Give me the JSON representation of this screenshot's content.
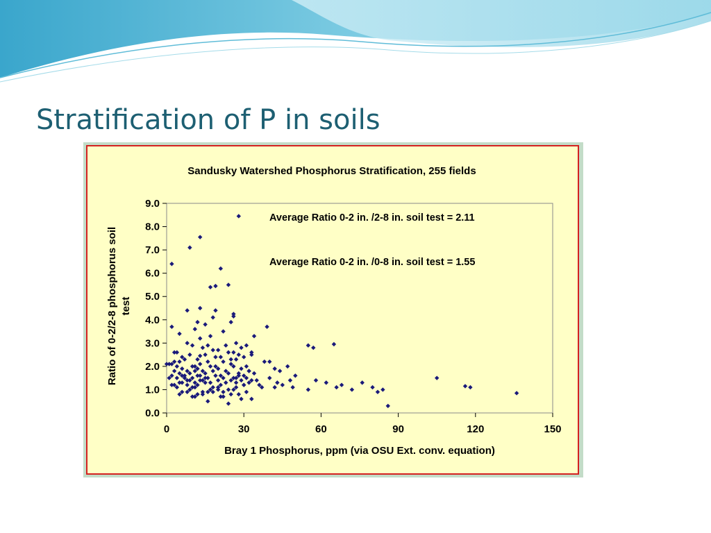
{
  "slide": {
    "title": "Stratification of P in soils"
  },
  "colors": {
    "title": "#1d5f72",
    "chart_background": "#ffffc6",
    "chart_border": "#d42020",
    "frame": "#c3dcc8",
    "marker": "#1a1a7a",
    "wave_light": "#9ad9ea",
    "wave_dark": "#3aa6cc"
  },
  "chart_data": {
    "type": "scatter",
    "title": "Sandusky Watershed Phosphorus Stratification, 255 fields",
    "xlabel": "Bray 1 Phosphorus, ppm (via OSU Ext. conv. equation)",
    "ylabel": "Ratio of 0-2/2-8 phosphorus soil test",
    "xlim": [
      0,
      150
    ],
    "ylim": [
      0,
      9
    ],
    "xticks": [
      "0",
      "30",
      "60",
      "90",
      "120",
      "150"
    ],
    "yticks": [
      "0.0",
      "1.0",
      "2.0",
      "3.0",
      "4.0",
      "5.0",
      "6.0",
      "7.0",
      "8.0",
      "9.0"
    ],
    "grid": false,
    "annotations": [
      "Average Ratio 0-2 in. /2-8 in. soil test = 2.11",
      "Average Ratio 0-2 in. /0-8 in. soil test = 1.55"
    ],
    "series": [
      {
        "marker": "diamond",
        "x": [
          28,
          13,
          9,
          2,
          21,
          24,
          19,
          17,
          2,
          8,
          19,
          26,
          26,
          13,
          1,
          39,
          34,
          65,
          55,
          57,
          18,
          12,
          5,
          3,
          11,
          15,
          17,
          22,
          25,
          27,
          8,
          13,
          16,
          20,
          29,
          31,
          33,
          10,
          14,
          18,
          23,
          26,
          4,
          6,
          9,
          12,
          15,
          21,
          24,
          28,
          30,
          33,
          3,
          5,
          7,
          11,
          13,
          16,
          19,
          22,
          25,
          27,
          31,
          2,
          4,
          6,
          8,
          10,
          12,
          14,
          17,
          20,
          23,
          26,
          29,
          32,
          3,
          5,
          7,
          9,
          11,
          13,
          15,
          18,
          21,
          24,
          28,
          31,
          34,
          2,
          4,
          6,
          8,
          10,
          12,
          14,
          16,
          19,
          22,
          25,
          27,
          30,
          33,
          5,
          7,
          9,
          11,
          13,
          15,
          17,
          20,
          23,
          26,
          29,
          32,
          3,
          6,
          8,
          10,
          12,
          15,
          18,
          21,
          24,
          27,
          30,
          4,
          6,
          9,
          11,
          14,
          17,
          20,
          22,
          26,
          28,
          31,
          5,
          8,
          11,
          14,
          18,
          21,
          25,
          29,
          33,
          10,
          16,
          22,
          27,
          36,
          38,
          40,
          42,
          43,
          45,
          47,
          48,
          50,
          44,
          42,
          35,
          37,
          40,
          49,
          55,
          58,
          62,
          66,
          68,
          72,
          76,
          80,
          82,
          84,
          86,
          105,
          116,
          118,
          136,
          0,
          1,
          2,
          13,
          19,
          25,
          28,
          32,
          20,
          24,
          16,
          12,
          30
        ],
        "y": [
          8.45,
          7.55,
          7.1,
          6.4,
          6.2,
          5.5,
          5.45,
          5.4,
          3.7,
          4.4,
          4.4,
          4.25,
          4.15,
          4.5,
          2.1,
          3.7,
          3.3,
          2.95,
          2.9,
          2.8,
          4.1,
          3.9,
          3.4,
          2.6,
          3.6,
          3.8,
          3.3,
          3.5,
          3.9,
          3.0,
          3.0,
          3.2,
          2.9,
          2.7,
          2.8,
          2.9,
          2.6,
          2.9,
          2.8,
          2.7,
          2.9,
          2.6,
          2.6,
          2.4,
          2.5,
          2.3,
          2.5,
          2.4,
          2.6,
          2.5,
          2.4,
          2.5,
          2.2,
          2.2,
          2.3,
          2.0,
          2.1,
          2.2,
          2.0,
          2.2,
          2.1,
          2.3,
          2.0,
          2.1,
          2.0,
          1.9,
          1.8,
          2.0,
          1.9,
          1.8,
          2.0,
          1.9,
          1.8,
          2.0,
          1.9,
          1.8,
          1.8,
          1.7,
          1.6,
          1.7,
          1.8,
          1.6,
          1.7,
          1.8,
          1.6,
          1.7,
          1.6,
          1.5,
          1.7,
          1.6,
          1.5,
          1.6,
          1.4,
          1.5,
          1.6,
          1.4,
          1.5,
          1.6,
          1.5,
          1.4,
          1.5,
          1.6,
          1.4,
          1.3,
          1.5,
          1.4,
          1.3,
          1.4,
          1.5,
          1.3,
          1.4,
          1.3,
          1.5,
          1.4,
          1.3,
          1.2,
          1.3,
          1.2,
          1.1,
          1.2,
          1.3,
          1.1,
          1.2,
          1.0,
          1.1,
          1.2,
          1.1,
          0.9,
          1.0,
          1.1,
          0.9,
          1.0,
          1.1,
          0.9,
          1.0,
          0.8,
          0.9,
          0.8,
          0.9,
          0.7,
          0.8,
          0.9,
          0.7,
          0.8,
          0.6,
          0.6,
          0.7,
          0.5,
          0.7,
          1.3,
          1.2,
          2.2,
          1.5,
          1.1,
          1.3,
          1.2,
          2.0,
          1.4,
          1.6,
          1.8,
          1.9,
          1.4,
          1.1,
          2.2,
          1.1,
          1.0,
          1.4,
          1.3,
          1.1,
          1.2,
          1.0,
          1.3,
          1.1,
          0.9,
          1.0,
          0.3,
          1.5,
          1.15,
          1.1,
          0.85,
          2.1,
          1.5,
          1.2,
          2.45,
          2.4,
          2.3,
          1.7,
          1.8,
          1.0,
          0.4,
          0.9,
          0.8,
          1.2
        ]
      }
    ]
  }
}
